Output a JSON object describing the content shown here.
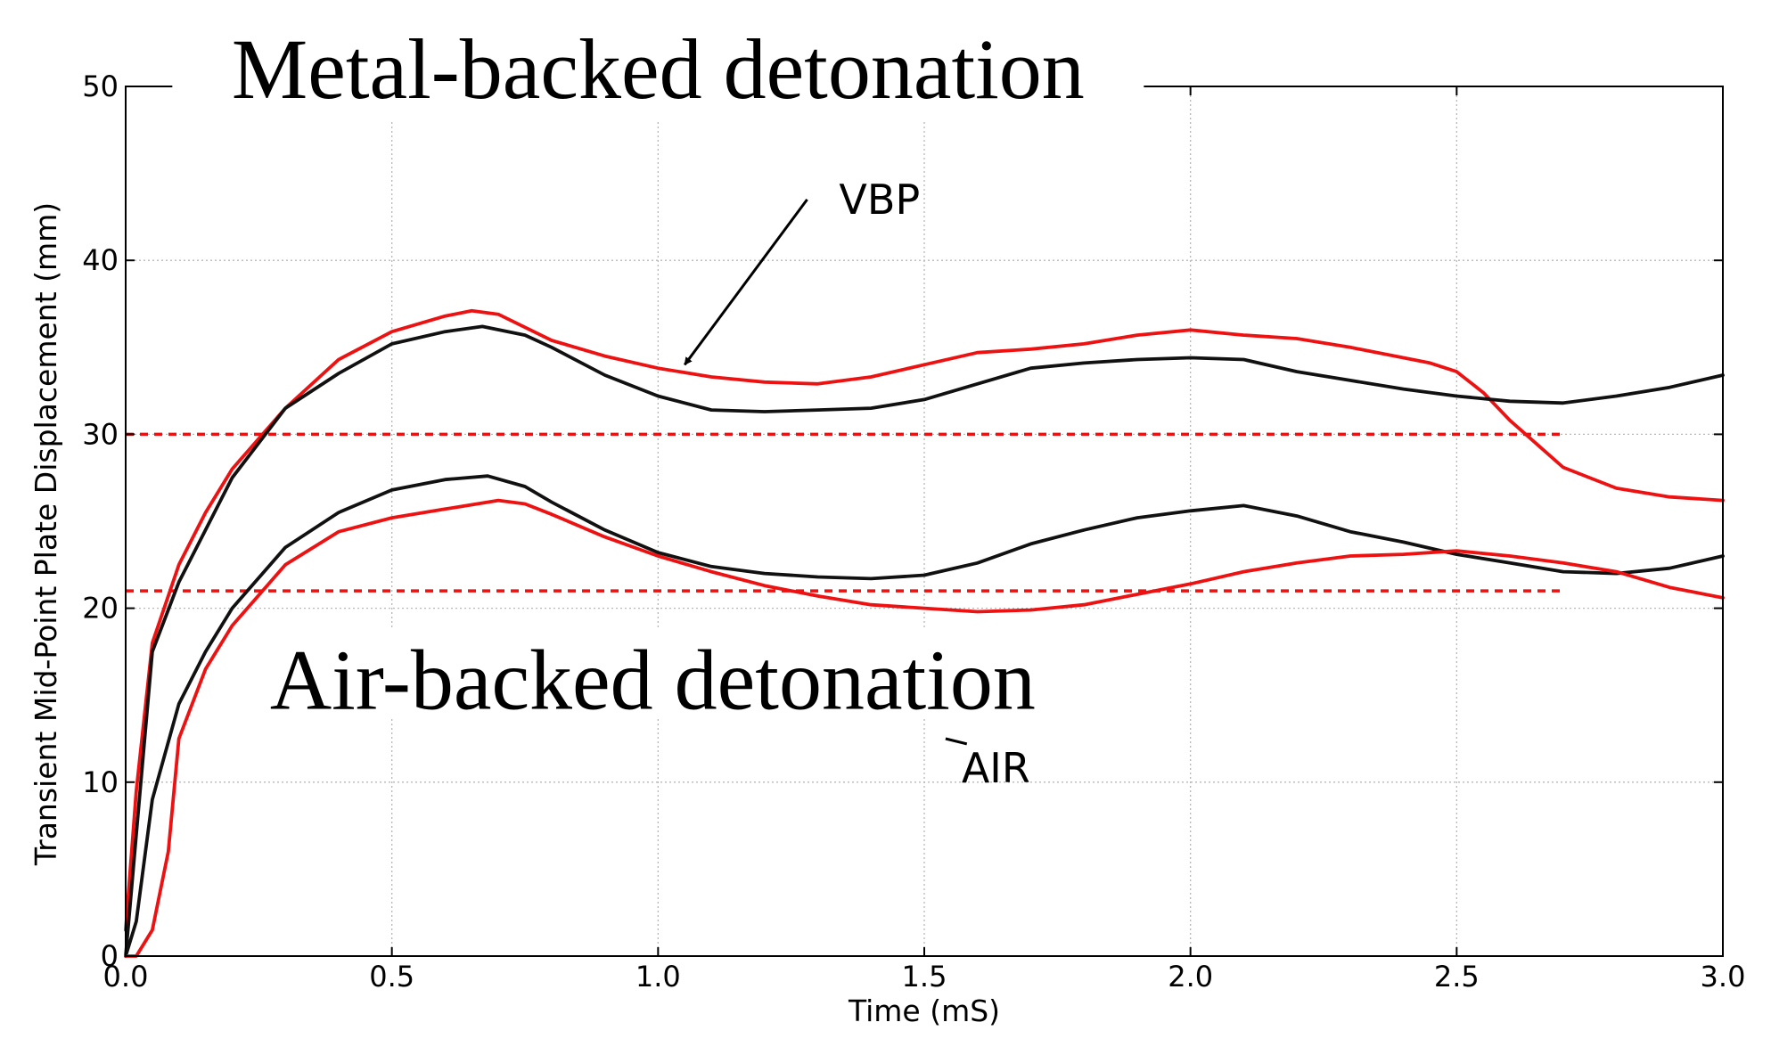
{
  "chart_data": {
    "type": "line",
    "title": "",
    "xlabel": "Time (mS)",
    "ylabel": "Transient Mid-Point Plate Displacement (mm)",
    "xlim": [
      0.0,
      3.0
    ],
    "ylim": [
      0,
      50
    ],
    "grid": true,
    "xticks": [
      0.0,
      0.5,
      1.0,
      1.5,
      2.0,
      2.5,
      3.0
    ],
    "xtick_labels": [
      "0.0",
      "0.5",
      "1.0",
      "1.5",
      "2.0",
      "2.5",
      "3.0"
    ],
    "yticks": [
      0,
      10,
      20,
      30,
      40,
      50
    ],
    "ytick_labels": [
      "0",
      "10",
      "20",
      "30",
      "40",
      "50"
    ],
    "series": [
      {
        "name": "Metal-backed (red)",
        "color": "#ee1111",
        "x": [
          0.0,
          0.02,
          0.05,
          0.1,
          0.15,
          0.2,
          0.3,
          0.4,
          0.5,
          0.6,
          0.65,
          0.7,
          0.8,
          0.9,
          1.0,
          1.1,
          1.2,
          1.3,
          1.4,
          1.5,
          1.6,
          1.7,
          1.8,
          1.9,
          2.0,
          2.1,
          2.2,
          2.3,
          2.4,
          2.45,
          2.5,
          2.55,
          2.6,
          2.7,
          2.8,
          2.9,
          3.0
        ],
        "y": [
          1.5,
          9.5,
          18.0,
          22.5,
          25.5,
          28.0,
          31.5,
          34.3,
          35.9,
          36.8,
          37.1,
          36.9,
          35.4,
          34.5,
          33.8,
          33.3,
          33.0,
          32.9,
          33.3,
          34.0,
          34.7,
          34.9,
          35.2,
          35.7,
          36.0,
          35.7,
          35.5,
          35.0,
          34.4,
          34.1,
          33.6,
          32.4,
          30.8,
          28.1,
          26.9,
          26.4,
          26.2
        ]
      },
      {
        "name": "Metal-backed (black)",
        "color": "#111111",
        "x": [
          0.0,
          0.02,
          0.05,
          0.1,
          0.15,
          0.2,
          0.3,
          0.4,
          0.5,
          0.6,
          0.67,
          0.75,
          0.8,
          0.9,
          1.0,
          1.1,
          1.2,
          1.3,
          1.4,
          1.5,
          1.6,
          1.7,
          1.8,
          1.9,
          2.0,
          2.1,
          2.2,
          2.3,
          2.4,
          2.5,
          2.6,
          2.7,
          2.8,
          2.9,
          3.0
        ],
        "y": [
          0.0,
          7.0,
          17.5,
          21.5,
          24.5,
          27.5,
          31.5,
          33.5,
          35.2,
          35.9,
          36.2,
          35.7,
          35.0,
          33.4,
          32.2,
          31.4,
          31.3,
          31.4,
          31.5,
          32.0,
          32.9,
          33.8,
          34.1,
          34.3,
          34.4,
          34.3,
          33.6,
          33.1,
          32.6,
          32.2,
          31.9,
          31.8,
          32.2,
          32.7,
          33.4
        ]
      },
      {
        "name": "Air-backed (black)",
        "color": "#111111",
        "x": [
          0.0,
          0.02,
          0.05,
          0.1,
          0.15,
          0.2,
          0.3,
          0.4,
          0.5,
          0.6,
          0.68,
          0.75,
          0.8,
          0.9,
          1.0,
          1.1,
          1.2,
          1.3,
          1.4,
          1.5,
          1.6,
          1.7,
          1.8,
          1.9,
          2.0,
          2.1,
          2.2,
          2.3,
          2.4,
          2.5,
          2.6,
          2.7,
          2.8,
          2.9,
          3.0
        ],
        "y": [
          0.0,
          2.0,
          9.0,
          14.5,
          17.5,
          20.0,
          23.5,
          25.5,
          26.8,
          27.4,
          27.6,
          27.0,
          26.1,
          24.5,
          23.2,
          22.4,
          22.0,
          21.8,
          21.7,
          21.9,
          22.6,
          23.7,
          24.5,
          25.2,
          25.6,
          25.9,
          25.3,
          24.4,
          23.8,
          23.1,
          22.6,
          22.1,
          22.0,
          22.3,
          23.0
        ]
      },
      {
        "name": "Air-backed (red)",
        "color": "#ee1111",
        "x": [
          0.0,
          0.02,
          0.05,
          0.08,
          0.1,
          0.15,
          0.2,
          0.3,
          0.4,
          0.5,
          0.6,
          0.7,
          0.75,
          0.8,
          0.9,
          1.0,
          1.1,
          1.2,
          1.3,
          1.4,
          1.5,
          1.6,
          1.7,
          1.8,
          1.9,
          2.0,
          2.1,
          2.2,
          2.3,
          2.4,
          2.5,
          2.6,
          2.7,
          2.8,
          2.9,
          3.0
        ],
        "y": [
          0.0,
          0.0,
          1.5,
          6.0,
          12.5,
          16.5,
          19.0,
          22.5,
          24.4,
          25.2,
          25.7,
          26.2,
          26.0,
          25.4,
          24.1,
          23.0,
          22.1,
          21.3,
          20.7,
          20.2,
          20.0,
          19.8,
          19.9,
          20.2,
          20.8,
          21.4,
          22.1,
          22.6,
          23.0,
          23.1,
          23.3,
          23.0,
          22.6,
          22.1,
          21.2,
          20.6
        ]
      }
    ],
    "reference_lines": [
      {
        "y": 30,
        "x_range": [
          0.0,
          2.7
        ],
        "color": "#ee1111",
        "style": "dashed"
      },
      {
        "y": 21,
        "x_range": [
          0.0,
          2.7
        ],
        "color": "#ee1111",
        "style": "dashed"
      }
    ],
    "annotations": {
      "metal_title": "Metal-backed detonation",
      "air_title": "Air-backed detonation",
      "vbp_label": "VBP",
      "air_label": "AIR",
      "vbp_arrow_from": [
        1.28,
        43.5
      ],
      "vbp_arrow_to": [
        1.05,
        34.0
      ],
      "air_tick_from": [
        1.54,
        12.5
      ],
      "air_tick_to": [
        1.58,
        12.2
      ],
      "metal_title_pos": [
        1.0,
        50.0
      ],
      "air_title_pos": [
        0.99,
        16.0
      ],
      "vbp_label_pos": [
        1.34,
        43.5
      ],
      "air_label_pos": [
        1.57,
        10.8
      ]
    }
  }
}
